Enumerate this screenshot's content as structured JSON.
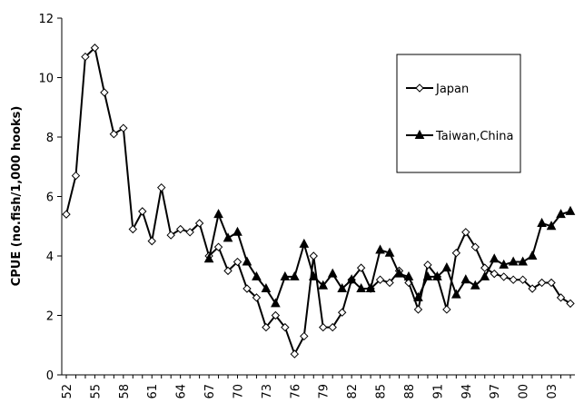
{
  "chart_data": {
    "type": "line",
    "y_label": "CPUE (no.fish/1,000 hooks)",
    "categories": [
      "52",
      null,
      null,
      "55",
      null,
      null,
      "58",
      null,
      null,
      "61",
      null,
      null,
      "64",
      null,
      null,
      "67",
      null,
      null,
      "70",
      null,
      null,
      "73",
      null,
      null,
      "76",
      null,
      null,
      "79",
      null,
      null,
      "82",
      null,
      null,
      "85",
      null,
      null,
      "88",
      null,
      null,
      "91",
      null,
      null,
      "94",
      null,
      null,
      "97",
      null,
      null,
      "00",
      null,
      null,
      "03",
      null,
      null
    ],
    "series": [
      {
        "name": "Japan",
        "color": "#000000",
        "marker": "diamond-open",
        "values": [
          5.4,
          6.7,
          10.7,
          11.0,
          9.5,
          8.1,
          8.3,
          4.9,
          5.5,
          4.5,
          6.3,
          4.7,
          4.9,
          4.8,
          5.1,
          4.0,
          4.3,
          3.5,
          3.8,
          2.9,
          2.6,
          1.6,
          2.0,
          1.6,
          0.7,
          1.3,
          4.0,
          1.6,
          1.6,
          2.1,
          3.2,
          3.6,
          2.9,
          3.2,
          3.1,
          3.5,
          3.1,
          2.2,
          3.7,
          3.3,
          2.2,
          4.1,
          4.8,
          4.3,
          3.6,
          3.4,
          3.3,
          3.2,
          3.2,
          2.9,
          3.1,
          3.1,
          2.6,
          2.4
        ]
      },
      {
        "name": "Taiwan,China",
        "color": "#000000",
        "marker": "triangle-filled",
        "values": [
          null,
          null,
          null,
          null,
          null,
          null,
          null,
          null,
          null,
          null,
          null,
          null,
          null,
          null,
          null,
          3.9,
          5.4,
          4.6,
          4.8,
          3.8,
          3.3,
          2.9,
          2.4,
          3.3,
          3.3,
          4.4,
          3.3,
          3.0,
          3.4,
          2.9,
          3.2,
          2.9,
          2.9,
          4.2,
          4.1,
          3.4,
          3.3,
          2.6,
          3.3,
          3.3,
          3.6,
          2.7,
          3.2,
          3.0,
          3.3,
          3.9,
          3.7,
          3.8,
          3.8,
          4.0,
          5.1,
          5.0,
          5.4,
          5.5
        ]
      }
    ],
    "ylim": [
      0,
      12
    ],
    "yticks": [
      0,
      2,
      4,
      6,
      8,
      10,
      12
    ],
    "grid": false,
    "legend": "upper right"
  }
}
